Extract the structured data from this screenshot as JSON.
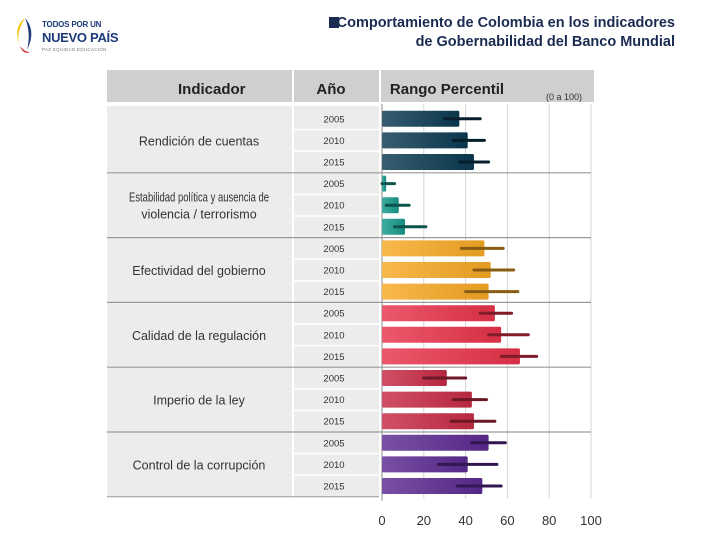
{
  "logo": {
    "line1": "TODOS POR UN",
    "line2": "NUEVO PAÍS",
    "line3": "PAZ   EQUIDAD   EDUCACIÓN"
  },
  "title": {
    "line1": "Comportamiento de Colombia en los indicadores",
    "line2": "de Gobernabilidad del Banco Mundial"
  },
  "table_headers": {
    "indicator": "Indicador",
    "year": "Año",
    "range": "Rango Percentil",
    "range_note": "(0 a 100)"
  },
  "chart_data": {
    "type": "bar",
    "orientation": "horizontal",
    "xlim": [
      0,
      100
    ],
    "xticks": [
      0,
      20,
      40,
      60,
      80,
      100
    ],
    "grid": true,
    "groups": [
      {
        "indicator": "Rendición de cuentas",
        "color": "#0b3a52",
        "rows": [
          {
            "year": "2005",
            "value": 37,
            "low": 30,
            "high": 47
          },
          {
            "year": "2010",
            "value": 41,
            "low": 34,
            "high": 49
          },
          {
            "year": "2015",
            "value": 44,
            "low": 37,
            "high": 51
          }
        ]
      },
      {
        "indicator": "Estabilidad política y ausencia de violencia / terrorismo",
        "color": "#16988a",
        "rows": [
          {
            "year": "2005",
            "value": 2,
            "low": 0,
            "high": 6
          },
          {
            "year": "2010",
            "value": 8,
            "low": 2,
            "high": 13
          },
          {
            "year": "2015",
            "value": 11,
            "low": 6,
            "high": 21
          }
        ]
      },
      {
        "indicator": "Efectividad del gobierno",
        "color": "#f7a824",
        "rows": [
          {
            "year": "2005",
            "value": 49,
            "low": 38,
            "high": 58
          },
          {
            "year": "2010",
            "value": 52,
            "low": 44,
            "high": 63
          },
          {
            "year": "2015",
            "value": 51,
            "low": 40,
            "high": 65
          }
        ]
      },
      {
        "indicator": "Calidad de la regulación",
        "color": "#e8334a",
        "rows": [
          {
            "year": "2005",
            "value": 54,
            "low": 47,
            "high": 62
          },
          {
            "year": "2010",
            "value": 57,
            "low": 51,
            "high": 70
          },
          {
            "year": "2015",
            "value": 66,
            "low": 57,
            "high": 74
          }
        ]
      },
      {
        "indicator": "Imperio de la ley",
        "color": "#c62a46",
        "rows": [
          {
            "year": "2005",
            "value": 31,
            "low": 20,
            "high": 40
          },
          {
            "year": "2010",
            "value": 43,
            "low": 34,
            "high": 50
          },
          {
            "year": "2015",
            "value": 44,
            "low": 33,
            "high": 54
          }
        ]
      },
      {
        "indicator": "Control de la corrupción",
        "color": "#5b2a91",
        "rows": [
          {
            "year": "2005",
            "value": 51,
            "low": 43,
            "high": 59
          },
          {
            "year": "2010",
            "value": 41,
            "low": 27,
            "high": 55
          },
          {
            "year": "2015",
            "value": 48,
            "low": 36,
            "high": 57
          }
        ]
      }
    ]
  }
}
